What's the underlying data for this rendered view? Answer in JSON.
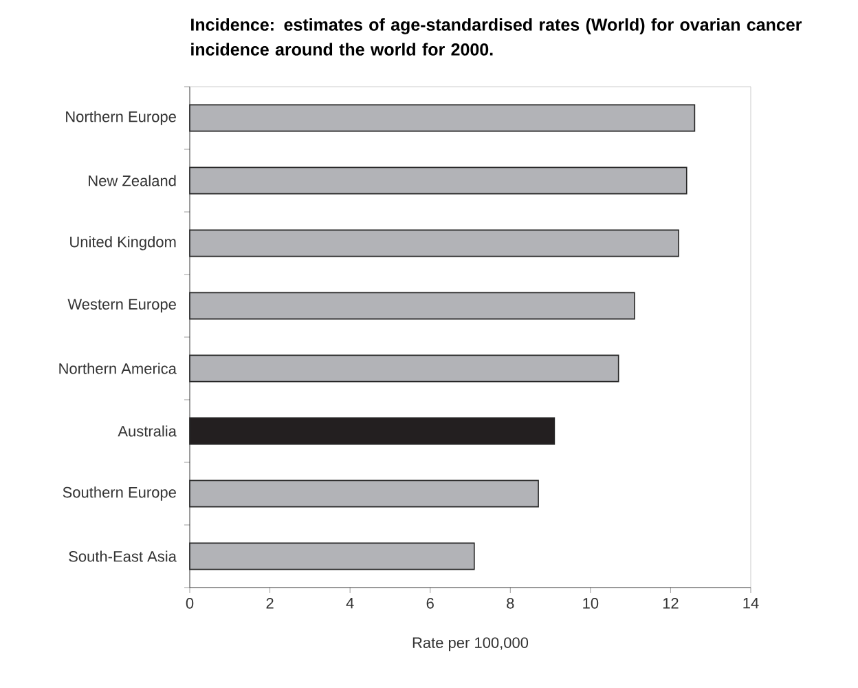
{
  "chart_data": {
    "type": "bar",
    "orientation": "horizontal",
    "title": "Incidence:   estimates of age-standardised rates (World) for ovarian cancer incidence around the world for 2000.",
    "xlabel": "Rate per 100,000",
    "categories": [
      "Northern Europe",
      "New Zealand",
      "United Kingdom",
      "Western Europe",
      "Northern America",
      "Australia",
      "Southern Europe",
      "South-East Asia"
    ],
    "values": [
      12.6,
      12.4,
      12.2,
      11.1,
      10.7,
      9.1,
      8.7,
      7.1
    ],
    "colors": [
      "#b2b3b7",
      "#b2b3b7",
      "#b2b3b7",
      "#b2b3b7",
      "#b2b3b7",
      "#231f20",
      "#b2b3b7",
      "#b2b3b7"
    ],
    "xlim": [
      0,
      14
    ],
    "xticks": [
      0,
      2,
      4,
      6,
      8,
      10,
      12,
      14
    ]
  }
}
